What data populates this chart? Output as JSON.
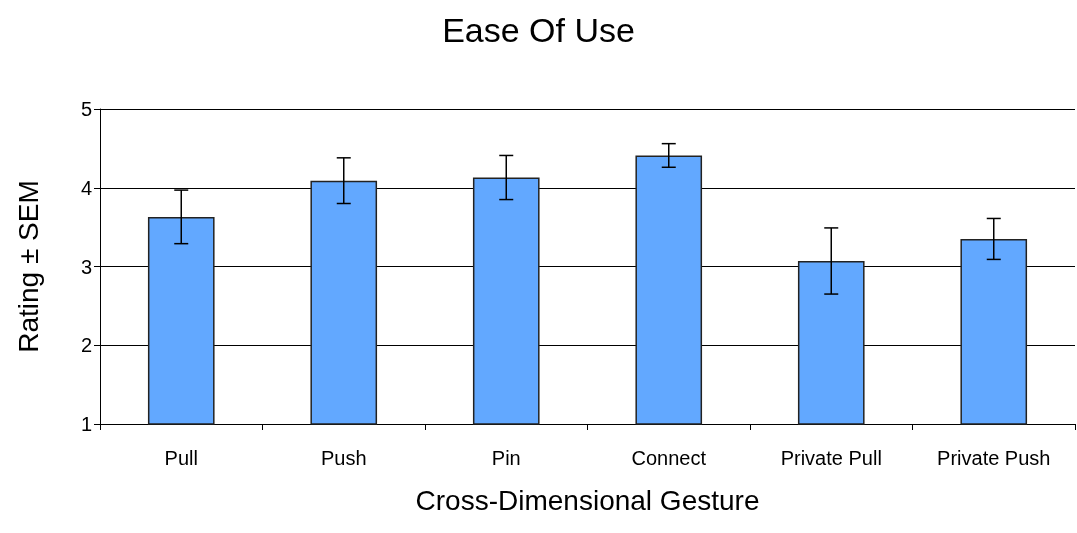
{
  "chart_data": {
    "type": "bar",
    "title": "Ease Of Use",
    "xlabel": "Cross-Dimensional Gesture",
    "ylabel": "Rating ± SEM",
    "categories": [
      "Pull",
      "Push",
      "Pin",
      "Connect",
      "Private Pull",
      "Private Push"
    ],
    "values": [
      3.63,
      4.09,
      4.13,
      4.41,
      3.07,
      3.35
    ],
    "errors": [
      0.34,
      0.29,
      0.28,
      0.15,
      0.42,
      0.26
    ],
    "color": "#62a8ff",
    "ylim": [
      1,
      5
    ],
    "yticks": [
      1,
      2,
      3,
      4,
      5
    ],
    "grid": "y"
  }
}
